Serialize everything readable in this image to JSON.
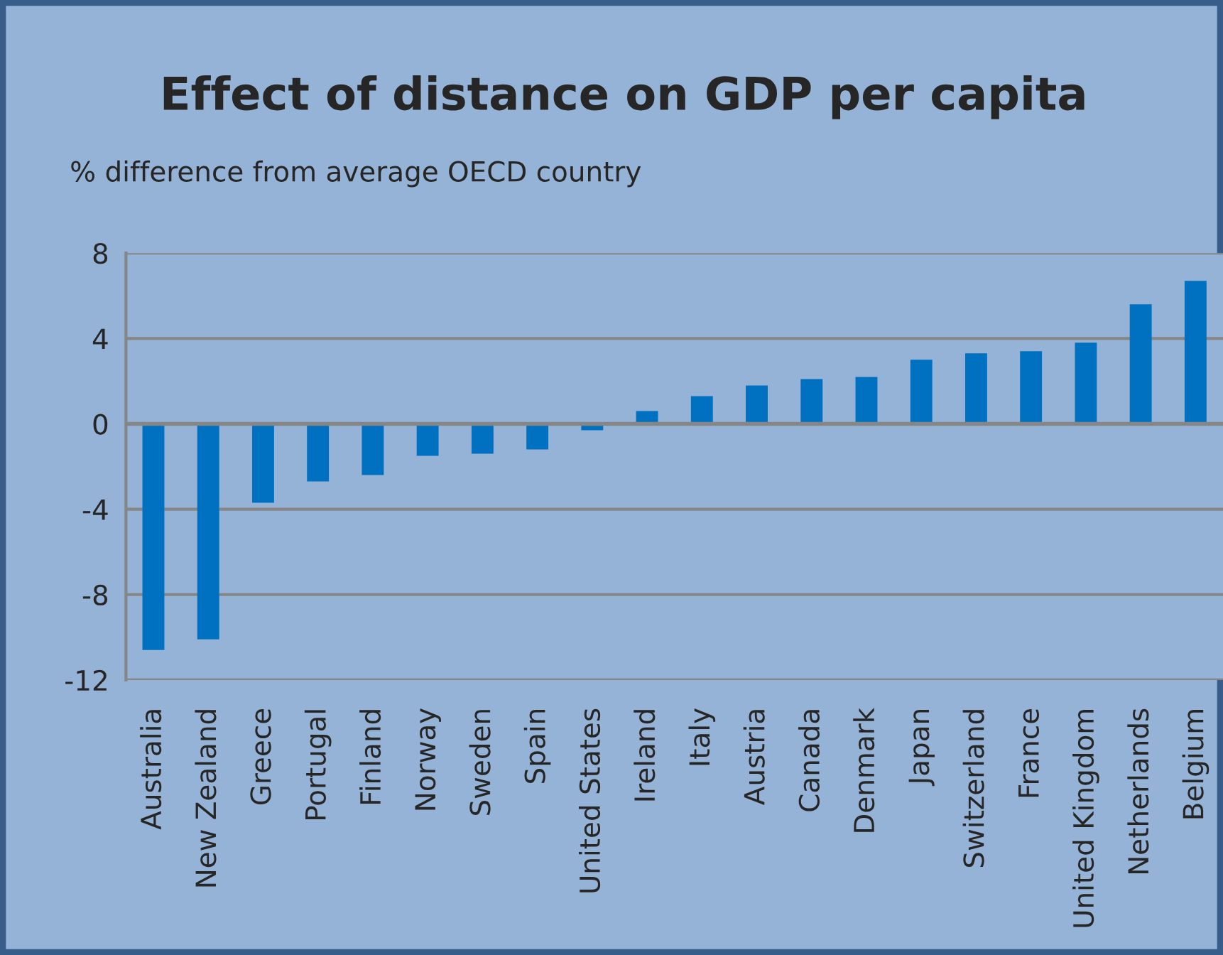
{
  "chart_data": {
    "type": "bar",
    "title": "Effect of distance on GDP per capita",
    "subtitle": "% difference from average OECD country",
    "categories": [
      "Australia",
      "New Zealand",
      "Greece",
      "Portugal",
      "Finland",
      "Norway",
      "Sweden",
      "Spain",
      "United States",
      "Ireland",
      "Italy",
      "Austria",
      "Canada",
      "Denmark",
      "Japan",
      "Switzerland",
      "France",
      "United Kingdom",
      "Netherlands",
      "Belgium"
    ],
    "values": [
      -10.6,
      -10.1,
      -3.7,
      -2.7,
      -2.4,
      -1.5,
      -1.4,
      -1.2,
      -0.3,
      0.6,
      1.3,
      1.8,
      2.1,
      2.2,
      3.0,
      3.3,
      3.4,
      3.8,
      5.6,
      6.7
    ],
    "color": "#0070c0",
    "ylim": [
      -12,
      8
    ],
    "yticks": [
      -12,
      -8,
      -4,
      0,
      4,
      8
    ],
    "grid": "y"
  }
}
